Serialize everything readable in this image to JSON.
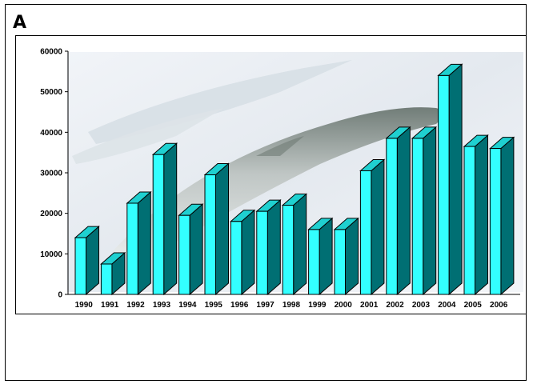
{
  "panel": {
    "label": "A"
  },
  "chart_data": {
    "type": "bar",
    "title": "",
    "xlabel": "",
    "ylabel": "",
    "categories": [
      "1990",
      "1991",
      "1992",
      "1993",
      "1994",
      "1995",
      "1996",
      "1997",
      "1998",
      "1999",
      "2000",
      "2001",
      "2002",
      "2003",
      "2004",
      "2005",
      "2006"
    ],
    "values": [
      14000,
      7500,
      22500,
      34500,
      19500,
      29500,
      18000,
      20500,
      22000,
      16000,
      16000,
      30500,
      38500,
      38500,
      54000,
      36500,
      36000
    ],
    "ylim": [
      0,
      60000
    ],
    "yticks": [
      "0",
      "10000",
      "20000",
      "30000",
      "40000",
      "50000",
      "60000"
    ],
    "grid": false,
    "legend": "none",
    "colors": {
      "front": "#33ffff",
      "side": "#006f73",
      "top": "#1fd0d0",
      "outline": "#000000"
    }
  }
}
